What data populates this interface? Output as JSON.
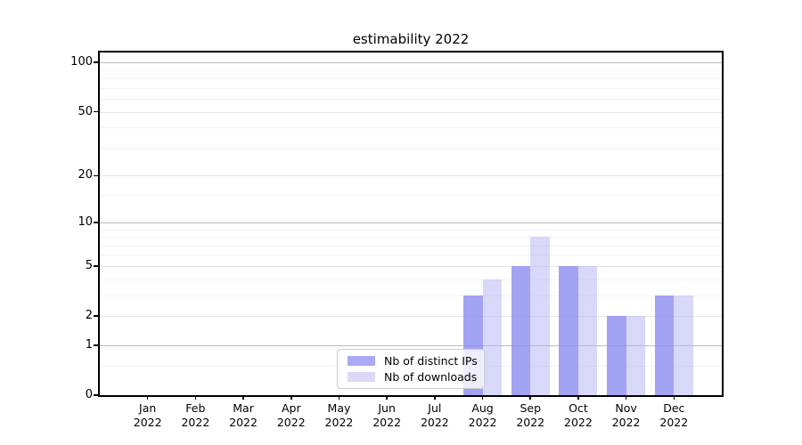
{
  "title": "estimability 2022",
  "chart_data": {
    "type": "bar",
    "title": "estimability 2022",
    "categories": [
      "Jan",
      "Feb",
      "Mar",
      "Apr",
      "May",
      "Jun",
      "Jul",
      "Aug",
      "Sep",
      "Oct",
      "Nov",
      "Dec"
    ],
    "year_suffix": "2022",
    "series": [
      {
        "name": "Nb of distinct IPs",
        "color": "#a9a9f5",
        "fill": "rgba(137,137,240,0.78)",
        "values": [
          0,
          0,
          0,
          0,
          0,
          0,
          0,
          3,
          5,
          5,
          2,
          3
        ]
      },
      {
        "name": "Nb of downloads",
        "color": "#dadaf8",
        "fill": "rgba(180,180,242,0.52)",
        "values": [
          0,
          0,
          0,
          0,
          0,
          0,
          0,
          4,
          8,
          5,
          2,
          3
        ]
      }
    ],
    "yticks": [
      0,
      1,
      2,
      5,
      10,
      20,
      50,
      100
    ],
    "y_scale": "log10(value+1)",
    "ylim": [
      0,
      115
    ],
    "grid": "horizontal",
    "gridlines_major": [
      1,
      10,
      100
    ],
    "gridlines_mid": [
      2,
      5,
      20,
      50
    ],
    "gridlines_minor": [
      0.5,
      3,
      4,
      6,
      7,
      8,
      9,
      15,
      30,
      40,
      60,
      70,
      80,
      90
    ],
    "grid_color_major": "#bbbbbb",
    "grid_color_mid": "#e7e7e7",
    "grid_color_minor": "#f3f3f3",
    "legend_position": "lower-center-inside",
    "xlabel": "",
    "ylabel": ""
  }
}
